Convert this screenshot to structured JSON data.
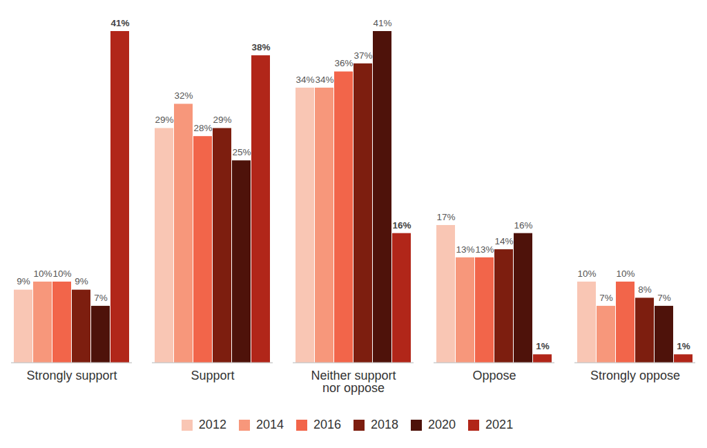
{
  "chart_data": {
    "type": "bar",
    "categories": [
      "Strongly support",
      "Support",
      "Neither support nor oppose",
      "Oppose",
      "Strongly oppose"
    ],
    "series": [
      {
        "name": "2012",
        "color": "#f9c6b4",
        "values": [
          9,
          29,
          34,
          17,
          10
        ],
        "value_labels": [
          "9%",
          "29%",
          "34%",
          "17%",
          "10%"
        ]
      },
      {
        "name": "2014",
        "color": "#f7977b",
        "values": [
          10,
          32,
          34,
          13,
          7
        ],
        "value_labels": [
          "10%",
          "32%",
          "34%",
          "13%",
          "7%"
        ]
      },
      {
        "name": "2016",
        "color": "#f2654a",
        "values": [
          10,
          28,
          36,
          13,
          10
        ],
        "value_labels": [
          "10%",
          "28%",
          "36%",
          "13%",
          "10%"
        ]
      },
      {
        "name": "2018",
        "color": "#7d1e0f",
        "values": [
          9,
          29,
          37,
          14,
          8
        ],
        "value_labels": [
          "9%",
          "29%",
          "37%",
          "14%",
          "8%"
        ]
      },
      {
        "name": "2020",
        "color": "#4e120a",
        "values": [
          7,
          25,
          41,
          16,
          7
        ],
        "value_labels": [
          "7%",
          "25%",
          "41%",
          "16%",
          "7%"
        ]
      },
      {
        "name": "2021",
        "color": "#b12619",
        "values": [
          41,
          38,
          16,
          1,
          1
        ],
        "value_labels": [
          "41%",
          "38%",
          "16%",
          "1%",
          "1%"
        ]
      }
    ],
    "ylim": [
      0,
      41
    ],
    "tick_labels": "x",
    "data_labels": true,
    "legend": "bottom"
  }
}
